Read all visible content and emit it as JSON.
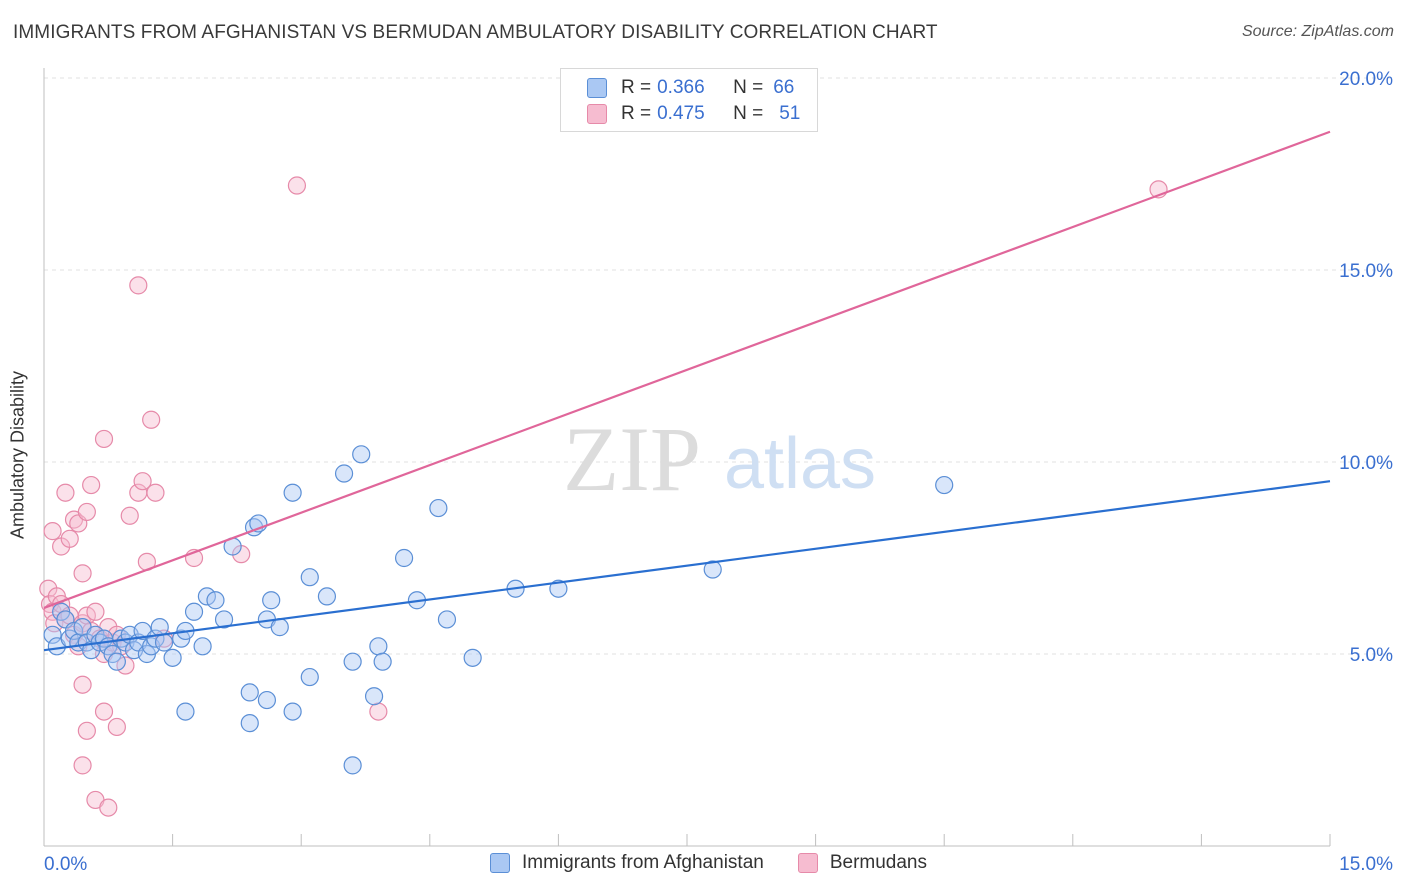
{
  "title": "IMMIGRANTS FROM AFGHANISTAN VS BERMUDAN AMBULATORY DISABILITY CORRELATION CHART",
  "source": "Source: ZipAtlas.com",
  "watermark": {
    "zip": "ZIP",
    "atlas": "atlas"
  },
  "legend": {
    "rows": [
      {
        "r_label": "R = ",
        "r_value": "0.366",
        "n_label": "N = ",
        "n_value": "66"
      },
      {
        "r_label": "R = ",
        "r_value": "0.475",
        "n_label": "N = ",
        "n_value": "51"
      }
    ]
  },
  "bottom_legend": [
    "Immigrants from Afghanistan",
    "Bermudans"
  ],
  "colors": {
    "blue_fill": "#aac8f3",
    "blue_stroke": "#5b8fd6",
    "blue_line": "#2a6fd0",
    "pink_fill": "#f6bcd0",
    "pink_stroke": "#e68aa9",
    "pink_line": "#e0669a",
    "axis_text": "#3a6fd0",
    "grid": "#e2e2e2"
  },
  "chart_data": {
    "type": "scatter",
    "title": "IMMIGRANTS FROM AFGHANISTAN VS BERMUDAN AMBULATORY DISABILITY CORRELATION CHART",
    "xlabel": "",
    "ylabel": "Ambulatory Disability",
    "xlim": [
      0,
      15
    ],
    "ylim": [
      0,
      20
    ],
    "x_tick_labels": [
      "0.0%",
      "15.0%"
    ],
    "y_tick_labels": [
      "5.0%",
      "10.0%",
      "15.0%",
      "20.0%"
    ],
    "y_ticks": [
      5,
      10,
      15,
      20
    ],
    "grid": true,
    "legend_position": "top-center",
    "series": [
      {
        "name": "Immigrants from Afghanistan",
        "R": 0.366,
        "N": 66,
        "trendline": {
          "x": [
            0,
            15
          ],
          "y": [
            5.1,
            9.5
          ]
        },
        "points": [
          [
            0.1,
            5.5
          ],
          [
            0.15,
            5.2
          ],
          [
            0.2,
            6.1
          ],
          [
            0.25,
            5.9
          ],
          [
            0.3,
            5.4
          ],
          [
            0.35,
            5.6
          ],
          [
            0.4,
            5.3
          ],
          [
            0.45,
            5.7
          ],
          [
            0.5,
            5.3
          ],
          [
            0.55,
            5.1
          ],
          [
            0.6,
            5.5
          ],
          [
            0.65,
            5.3
          ],
          [
            0.7,
            5.4
          ],
          [
            0.75,
            5.2
          ],
          [
            0.8,
            5.0
          ],
          [
            0.85,
            4.8
          ],
          [
            0.9,
            5.4
          ],
          [
            0.95,
            5.3
          ],
          [
            1.0,
            5.5
          ],
          [
            1.05,
            5.1
          ],
          [
            1.1,
            5.3
          ],
          [
            1.15,
            5.6
          ],
          [
            1.2,
            5.0
          ],
          [
            1.25,
            5.2
          ],
          [
            1.3,
            5.4
          ],
          [
            1.35,
            5.7
          ],
          [
            1.4,
            5.3
          ],
          [
            1.5,
            4.9
          ],
          [
            1.6,
            5.4
          ],
          [
            1.65,
            5.6
          ],
          [
            1.75,
            6.1
          ],
          [
            1.85,
            5.2
          ],
          [
            1.9,
            6.5
          ],
          [
            2.0,
            6.4
          ],
          [
            2.1,
            5.9
          ],
          [
            2.2,
            7.8
          ],
          [
            2.45,
            8.3
          ],
          [
            2.5,
            8.4
          ],
          [
            2.6,
            5.9
          ],
          [
            2.65,
            6.4
          ],
          [
            2.75,
            5.7
          ],
          [
            2.9,
            9.2
          ],
          [
            3.1,
            7.0
          ],
          [
            3.3,
            6.5
          ],
          [
            3.5,
            9.7
          ],
          [
            3.6,
            4.8
          ],
          [
            3.7,
            10.2
          ],
          [
            3.85,
            3.9
          ],
          [
            3.9,
            5.2
          ],
          [
            3.95,
            4.8
          ],
          [
            4.2,
            7.5
          ],
          [
            4.35,
            6.4
          ],
          [
            4.6,
            8.8
          ],
          [
            4.7,
            5.9
          ],
          [
            5.0,
            4.9
          ],
          [
            5.5,
            6.7
          ],
          [
            6.0,
            6.7
          ],
          [
            7.8,
            7.2
          ],
          [
            10.5,
            9.4
          ],
          [
            2.4,
            4.0
          ],
          [
            2.6,
            3.8
          ],
          [
            2.9,
            3.5
          ],
          [
            2.4,
            3.2
          ],
          [
            3.1,
            4.4
          ],
          [
            1.65,
            3.5
          ],
          [
            3.6,
            2.1
          ]
        ]
      },
      {
        "name": "Bermudans",
        "R": 0.475,
        "N": 51,
        "trendline": {
          "x": [
            0,
            15
          ],
          "y": [
            6.2,
            18.6
          ]
        },
        "points": [
          [
            0.05,
            6.7
          ],
          [
            0.07,
            6.3
          ],
          [
            0.1,
            6.1
          ],
          [
            0.12,
            5.8
          ],
          [
            0.15,
            6.5
          ],
          [
            0.2,
            6.3
          ],
          [
            0.25,
            5.9
          ],
          [
            0.3,
            6.0
          ],
          [
            0.35,
            5.5
          ],
          [
            0.4,
            5.2
          ],
          [
            0.45,
            5.8
          ],
          [
            0.5,
            6.0
          ],
          [
            0.55,
            5.6
          ],
          [
            0.6,
            6.1
          ],
          [
            0.65,
            5.4
          ],
          [
            0.7,
            5.0
          ],
          [
            0.75,
            5.7
          ],
          [
            0.8,
            5.3
          ],
          [
            0.85,
            5.5
          ],
          [
            0.9,
            5.2
          ],
          [
            0.1,
            8.2
          ],
          [
            0.2,
            7.8
          ],
          [
            0.25,
            9.2
          ],
          [
            0.3,
            8.0
          ],
          [
            0.35,
            8.5
          ],
          [
            0.4,
            8.4
          ],
          [
            0.45,
            7.1
          ],
          [
            0.5,
            8.7
          ],
          [
            0.55,
            9.4
          ],
          [
            0.7,
            10.6
          ],
          [
            0.95,
            4.7
          ],
          [
            1.0,
            8.6
          ],
          [
            1.1,
            9.2
          ],
          [
            1.15,
            9.5
          ],
          [
            1.2,
            7.4
          ],
          [
            1.25,
            11.1
          ],
          [
            1.3,
            9.2
          ],
          [
            1.4,
            5.4
          ],
          [
            1.75,
            7.5
          ],
          [
            2.3,
            7.6
          ],
          [
            1.1,
            14.6
          ],
          [
            2.95,
            17.2
          ],
          [
            13.0,
            17.1
          ],
          [
            0.45,
            4.2
          ],
          [
            0.5,
            3.0
          ],
          [
            0.7,
            3.5
          ],
          [
            0.85,
            3.1
          ],
          [
            0.45,
            2.1
          ],
          [
            0.6,
            1.2
          ],
          [
            0.75,
            1.0
          ],
          [
            3.9,
            3.5
          ]
        ]
      }
    ]
  }
}
